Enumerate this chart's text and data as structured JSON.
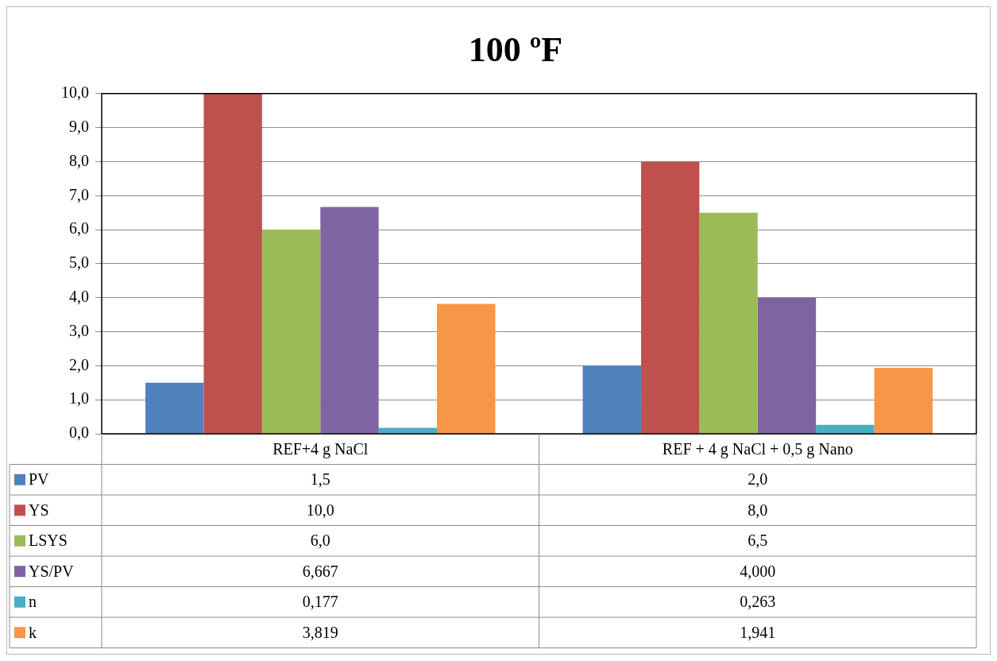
{
  "chart_data": {
    "type": "bar",
    "title": "100 ºF",
    "categories": [
      "REF+4 g NaCl",
      "REF + 4 g NaCl + 0,5 g Nano"
    ],
    "series": [
      {
        "name": "PV",
        "color": "#4f81bd",
        "values": [
          1.5,
          2.0
        ],
        "value_labels": [
          "1,5",
          "2,0"
        ]
      },
      {
        "name": "YS",
        "color": "#c0504d",
        "values": [
          10.0,
          8.0
        ],
        "value_labels": [
          "10,0",
          "8,0"
        ]
      },
      {
        "name": "LSYS",
        "color": "#9bbb59",
        "values": [
          6.0,
          6.5
        ],
        "value_labels": [
          "6,0",
          "6,5"
        ]
      },
      {
        "name": "YS/PV",
        "color": "#8064a2",
        "values": [
          6.667,
          4.0
        ],
        "value_labels": [
          "6,667",
          "4,000"
        ]
      },
      {
        "name": "n",
        "color": "#4bacc6",
        "values": [
          0.177,
          0.263
        ],
        "value_labels": [
          "0,177",
          "0,263"
        ]
      },
      {
        "name": "k",
        "color": "#f79646",
        "values": [
          3.819,
          1.941
        ],
        "value_labels": [
          "3,819",
          "1,941"
        ]
      }
    ],
    "ylim": [
      0,
      10
    ],
    "yticks": [
      {
        "value": 0,
        "label": "0,0"
      },
      {
        "value": 1,
        "label": "1,0"
      },
      {
        "value": 2,
        "label": "2,0"
      },
      {
        "value": 3,
        "label": "3,0"
      },
      {
        "value": 4,
        "label": "4,0"
      },
      {
        "value": 5,
        "label": "5,0"
      },
      {
        "value": 6,
        "label": "6,0"
      },
      {
        "value": 7,
        "label": "7,0"
      },
      {
        "value": 8,
        "label": "8,0"
      },
      {
        "value": 9,
        "label": "9,0"
      },
      {
        "value": 10,
        "label": "10,0"
      }
    ],
    "grid": "y",
    "legend": "bottom"
  }
}
